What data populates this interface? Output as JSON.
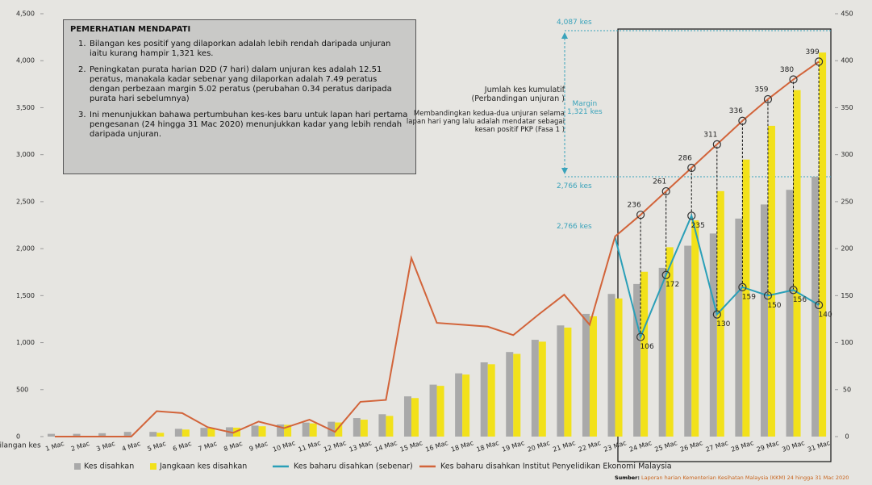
{
  "chart_data": {
    "type": "combo",
    "y_label": "Bilangan kes",
    "categories": [
      "1 Mac",
      "2 Mac",
      "3 Mac",
      "4 Mac",
      "5 Mac",
      "6 Mac",
      "7 Mac",
      "8 Mac",
      "9 Mac",
      "10 Mac",
      "11 Mac",
      "12 Mac",
      "13 Mac",
      "14 Mac",
      "15 Mac",
      "16 Mac",
      "18 Mac",
      "18 Mac",
      "19 Mac",
      "20 Mac",
      "21 Mac",
      "22 Mac",
      "23 Mac",
      "24 Mac",
      "25 Mac",
      "26 Mac",
      "27 Mac",
      "28 Mac",
      "29 Mac",
      "30 Mac",
      "31 Mac"
    ],
    "series": [
      {
        "name": "Kes disahkan",
        "type": "bar",
        "color": "#a9a9a9",
        "values": [
          29,
          29,
          36,
          50,
          50,
          83,
          93,
          99,
          117,
          129,
          149,
          158,
          197,
          238,
          428,
          553,
          673,
          790,
          900,
          1030,
          1183,
          1306,
          1518,
          1624,
          1796,
          2031,
          2161,
          2320,
          2470,
          2626,
          2766
        ]
      },
      {
        "name": "Jangkaan kes disahkan",
        "type": "bar",
        "color": "#f2e11a",
        "values": [
          0,
          0,
          0,
          0,
          40,
          75,
          88,
          95,
          110,
          125,
          140,
          150,
          180,
          220,
          410,
          540,
          660,
          770,
          880,
          1010,
          1160,
          1280,
          1470,
          1754,
          2015,
          2301,
          2612,
          2948,
          3307,
          3687,
          4087
        ]
      },
      {
        "name": "Kes baharu disahkan (sebenar)",
        "type": "line",
        "axis": "y2",
        "color": "#2a9fb8",
        "values": [
          null,
          null,
          null,
          null,
          null,
          null,
          null,
          null,
          null,
          null,
          null,
          null,
          null,
          null,
          null,
          null,
          null,
          null,
          null,
          null,
          null,
          null,
          212,
          106,
          172,
          235,
          130,
          159,
          150,
          156,
          140
        ]
      },
      {
        "name": "Kes baharu disahkan Institut Penyelidikan Ekonomi Malaysia",
        "type": "line",
        "axis": "y2",
        "color": "#d2643a",
        "values": [
          0,
          0,
          0,
          0,
          27,
          25,
          10,
          4,
          16,
          9,
          18,
          5,
          37,
          39,
          190,
          121,
          119,
          117,
          108,
          130,
          151,
          119,
          213,
          236,
          261,
          286,
          311,
          336,
          359,
          380,
          399
        ]
      }
    ],
    "ylim": [
      0,
      4500
    ],
    "yticks": [
      0,
      500,
      {
        "value": 1000,
        "label": "1,000"
      },
      {
        "value": 1500,
        "label": "1,500"
      },
      {
        "value": 2000,
        "label": "2,000"
      },
      {
        "value": 2500,
        "label": "2,500"
      },
      {
        "value": 3000,
        "label": "3,000"
      },
      {
        "value": 3500,
        "label": "3,500"
      },
      {
        "value": 4000,
        "label": "4,000"
      },
      {
        "value": 4500,
        "label": "4,500"
      }
    ],
    "y2lim": [
      0,
      450
    ],
    "y2ticks": [
      0,
      50,
      100,
      150,
      200,
      250,
      300,
      350,
      400,
      450
    ],
    "notes": {
      "title": "PEMERHATIAN MENDAPATI",
      "items": [
        {
          "num": "1.",
          "text": "Bilangan kes positif yang dilaporkan adalah lebih rendah daripada unjuran iaitu kurang hampir 1,321 kes."
        },
        {
          "num": "2.",
          "text": "Peningkatan purata harian D2D (7 hari) dalam unjuran kes adalah 12.51 peratus, manakala kadar sebenar yang dilaporkan adalah 7.49 peratus dengan perbezaan margin 5.02 peratus (perubahan 0.34 peratus daripada purata hari sebelumnya)"
        },
        {
          "num": "3.",
          "text": "Ini menunjukkan bahawa pertumbuhan kes-kes baru untuk lapan hari pertama pengesanan (24 hingga 31 Mac 2020) menunjukkan kadar yang lebih rendah daripada unjuran."
        }
      ]
    },
    "annotations": {
      "top": "4,087 kes",
      "margin": "Margin",
      "margin_value": "1,321 kes",
      "bottom": "2,766 kes",
      "bottom2": "2,766 kes",
      "heading": "Jumlah kes kumulatif",
      "subheading": "(Perbandingan unjuran )",
      "comment": "Membandingkan kedua-dua unjuran selama lapan hari yang lalu adalah mendatar sebagai kesan positif PKP (Fasa 1 )"
    },
    "source": {
      "label": "Sumber:",
      "text": "Laporan harian Kementerian Kesihatan Malaysia (KKM) 24 hingga 31 Mac 2020"
    }
  }
}
